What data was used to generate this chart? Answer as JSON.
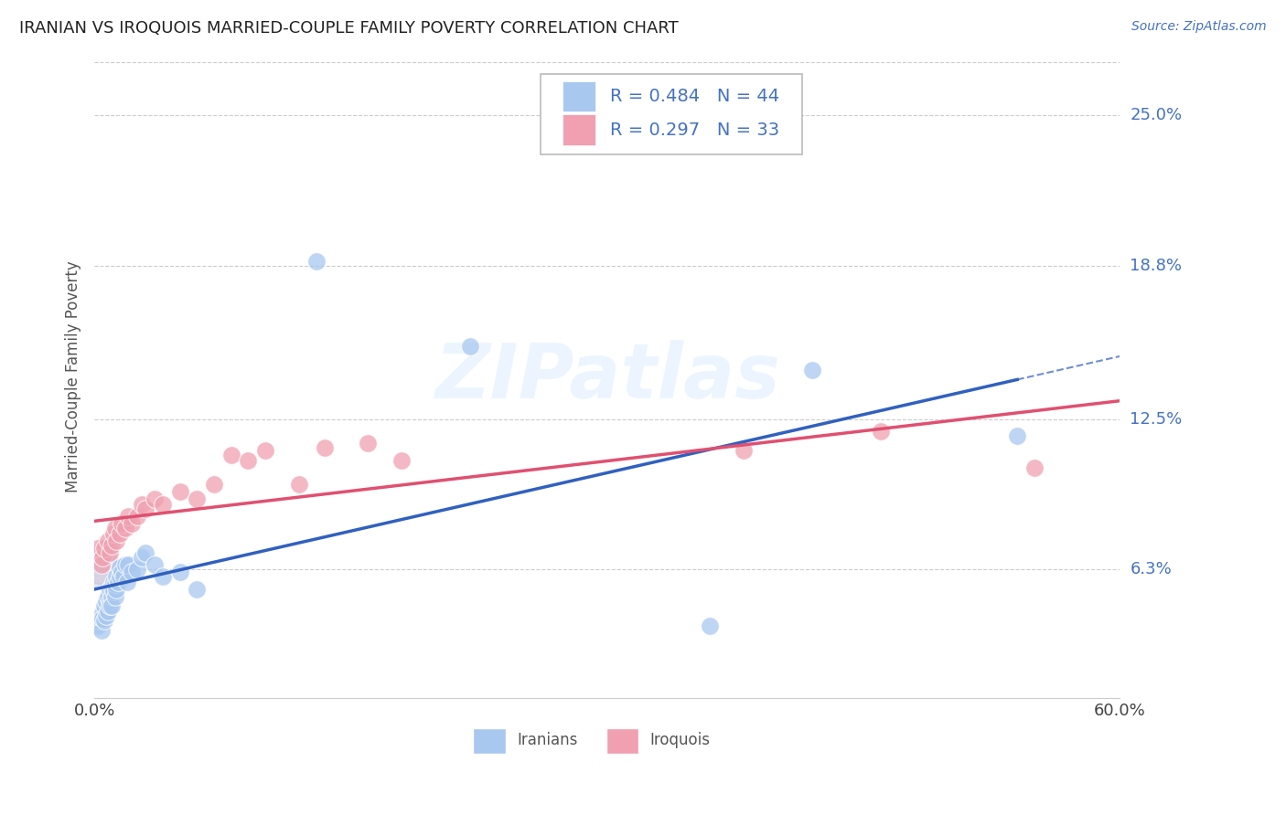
{
  "title": "IRANIAN VS IROQUOIS MARRIED-COUPLE FAMILY POVERTY CORRELATION CHART",
  "source": "Source: ZipAtlas.com",
  "ylabel_label": "Married-Couple Family Poverty",
  "xmin": 0.0,
  "xmax": 0.6,
  "ymin": 0.01,
  "ymax": 0.275,
  "ytick_vals": [
    0.063,
    0.125,
    0.188,
    0.25
  ],
  "ytick_labels": [
    "6.3%",
    "12.5%",
    "18.8%",
    "25.0%"
  ],
  "legend_R1": "0.484",
  "legend_N1": "44",
  "legend_R2": "0.297",
  "legend_N2": "33",
  "legend_label1": "Iranians",
  "legend_label2": "Iroquois",
  "color_iranian": "#a8c8f0",
  "color_iroquois": "#f0a0b0",
  "color_line_iranian": "#3060c0",
  "color_line_iroquois": "#e05070",
  "watermark": "ZIPatlas",
  "background": "#ffffff",
  "iranians_x": [
    0.002,
    0.003,
    0.004,
    0.005,
    0.005,
    0.006,
    0.006,
    0.007,
    0.007,
    0.008,
    0.008,
    0.009,
    0.009,
    0.009,
    0.01,
    0.01,
    0.01,
    0.011,
    0.011,
    0.012,
    0.012,
    0.013,
    0.013,
    0.014,
    0.015,
    0.015,
    0.016,
    0.017,
    0.018,
    0.019,
    0.02,
    0.022,
    0.025,
    0.028,
    0.03,
    0.035,
    0.04,
    0.05,
    0.06,
    0.13,
    0.22,
    0.36,
    0.42,
    0.54
  ],
  "iranians_y": [
    0.04,
    0.042,
    0.038,
    0.045,
    0.043,
    0.048,
    0.042,
    0.05,
    0.044,
    0.052,
    0.046,
    0.05,
    0.055,
    0.048,
    0.052,
    0.056,
    0.048,
    0.054,
    0.058,
    0.052,
    0.057,
    0.055,
    0.06,
    0.058,
    0.06,
    0.064,
    0.062,
    0.06,
    0.065,
    0.058,
    0.065,
    0.062,
    0.063,
    0.068,
    0.07,
    0.065,
    0.06,
    0.062,
    0.055,
    0.19,
    0.155,
    0.04,
    0.145,
    0.118
  ],
  "iroquois_x": [
    0.002,
    0.004,
    0.005,
    0.006,
    0.008,
    0.009,
    0.01,
    0.011,
    0.012,
    0.013,
    0.015,
    0.016,
    0.018,
    0.02,
    0.022,
    0.025,
    0.028,
    0.03,
    0.035,
    0.04,
    0.05,
    0.06,
    0.07,
    0.08,
    0.09,
    0.1,
    0.12,
    0.135,
    0.16,
    0.18,
    0.38,
    0.46,
    0.55
  ],
  "iroquois_y": [
    0.072,
    0.065,
    0.068,
    0.072,
    0.075,
    0.07,
    0.073,
    0.078,
    0.08,
    0.075,
    0.078,
    0.082,
    0.08,
    0.085,
    0.082,
    0.085,
    0.09,
    0.088,
    0.092,
    0.09,
    0.095,
    0.092,
    0.098,
    0.11,
    0.108,
    0.112,
    0.098,
    0.113,
    0.115,
    0.108,
    0.112,
    0.12,
    0.105
  ]
}
